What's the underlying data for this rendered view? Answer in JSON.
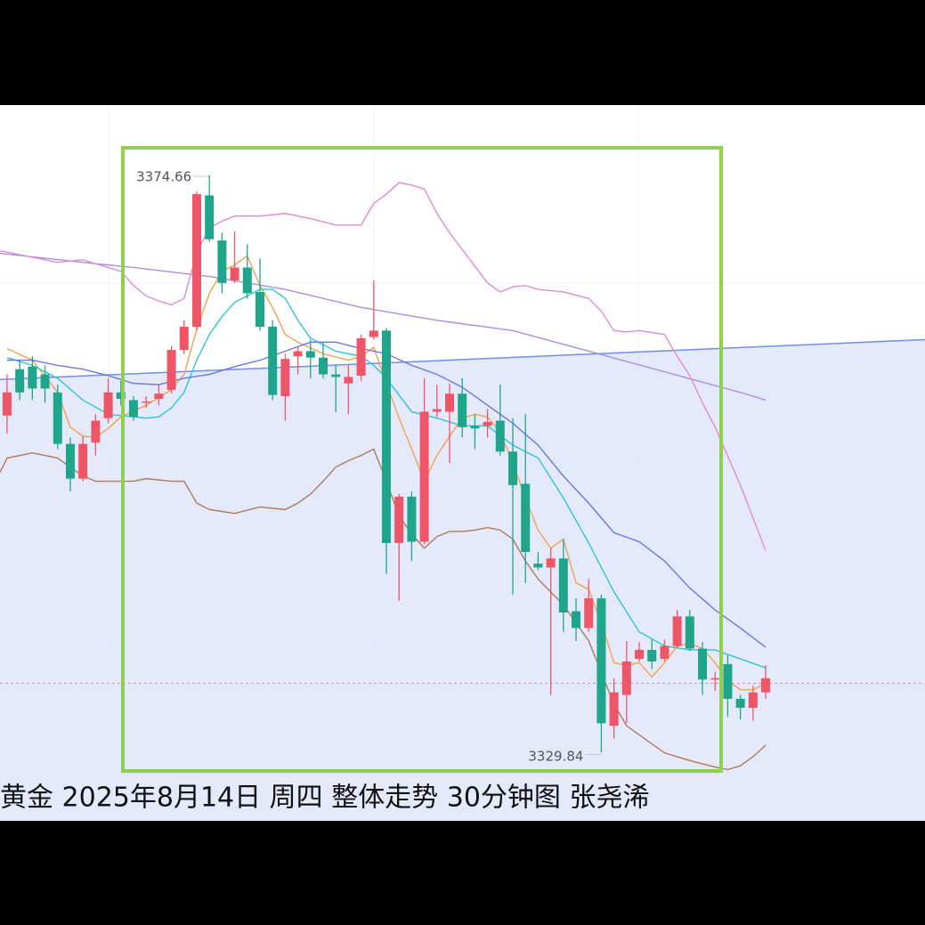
{
  "chart_data": {
    "type": "candlestick",
    "title": "黄金 2025年8月14日 周四 整体走势 30分钟图 张尧浠",
    "xlim": [
      -0.56,
      72.6
    ],
    "ylim": [
      3324.52,
      3380.12
    ],
    "up_color": "#ee5566",
    "down_color": "#1ea58c",
    "open": [
      3356.0,
      3359.6,
      3359.8,
      3359.2,
      3357.8,
      3353.8,
      3351.1,
      3353.9,
      3355.8,
      3357.8,
      3357.2,
      3357.0,
      3357.3,
      3358.0,
      3361.1,
      3362.9,
      3373.1,
      3369.6,
      3366.5,
      3367.5,
      3365.6,
      3362.9,
      3357.5,
      3360.6,
      3361.0,
      3360.5,
      3359.2,
      3358.5,
      3359.1,
      3362.1,
      3362.6,
      3346.1,
      3349.7,
      3346.2,
      3356.3,
      3356.3,
      3357.7,
      3355.2,
      3355.2,
      3355.6,
      3353.2,
      3350.7,
      3344.5,
      3344.2,
      3344.9,
      3340.8,
      3339.5,
      3341.8,
      3331.9,
      3334.3,
      3337.1,
      3337.8,
      3337.1,
      3338.1,
      3340.4,
      3337.9,
      3335.5,
      3336.7,
      3334.0,
      3333.3,
      3334.5
    ],
    "high": [
      3359.2,
      3360.3,
      3360.6,
      3359.9,
      3358.4,
      3354.3,
      3354.4,
      3356.1,
      3358.9,
      3358.7,
      3357.5,
      3357.5,
      3358.4,
      3361.4,
      3363.4,
      3373.4,
      3374.66,
      3370.2,
      3370.3,
      3369.3,
      3368.2,
      3363.4,
      3360.8,
      3361.3,
      3361.9,
      3361.7,
      3359.9,
      3359.9,
      3362.3,
      3366.5,
      3362.8,
      3349.9,
      3350.1,
      3358.9,
      3358.4,
      3358.5,
      3358.9,
      3356.1,
      3356.5,
      3358.4,
      3355.8,
      3356.1,
      3345.4,
      3345.7,
      3346.4,
      3341.8,
      3343.3,
      3342.1,
      3335.6,
      3338.5,
      3338.4,
      3338.6,
      3338.6,
      3340.9,
      3340.9,
      3338.4,
      3336.1,
      3337.4,
      3334.3,
      3335.0,
      3336.6
    ],
    "low": [
      3354.6,
      3357.2,
      3357.2,
      3357.0,
      3353.4,
      3350.1,
      3350.9,
      3352.9,
      3355.4,
      3356.8,
      3355.6,
      3356.6,
      3356.8,
      3357.7,
      3360.8,
      3362.6,
      3369.5,
      3365.5,
      3366.3,
      3365.1,
      3362.6,
      3357.2,
      3355.6,
      3359.2,
      3358.9,
      3358.9,
      3356.3,
      3356.1,
      3358.7,
      3361.9,
      3343.7,
      3341.6,
      3344.7,
      3346.0,
      3355.9,
      3352.3,
      3354.3,
      3353.4,
      3354.3,
      3352.9,
      3342.1,
      3343.0,
      3344.0,
      3334.3,
      3339.2,
      3338.5,
      3339.2,
      3329.84,
      3330.9,
      3332.1,
      3336.9,
      3336.3,
      3336.9,
      3337.9,
      3337.7,
      3334.3,
      3334.6,
      3332.6,
      3332.4,
      3332.3,
      3334.0
    ],
    "close": [
      3357.8,
      3357.8,
      3358.1,
      3358.1,
      3353.8,
      3351.1,
      3353.8,
      3355.6,
      3357.8,
      3357.3,
      3355.9,
      3357.1,
      3357.7,
      3361.1,
      3362.9,
      3373.2,
      3369.7,
      3366.3,
      3367.5,
      3365.5,
      3362.9,
      3357.6,
      3360.4,
      3361.0,
      3360.5,
      3359.2,
      3359.0,
      3359.0,
      3362.0,
      3362.6,
      3346.1,
      3349.7,
      3346.2,
      3356.3,
      3356.5,
      3357.7,
      3355.1,
      3355.0,
      3355.5,
      3353.2,
      3350.6,
      3345.4,
      3344.2,
      3344.9,
      3340.7,
      3339.5,
      3341.8,
      3332.1,
      3334.5,
      3336.9,
      3337.8,
      3336.9,
      3338.1,
      3340.4,
      3337.9,
      3335.5,
      3335.6,
      3334.0,
      3333.3,
      3334.5,
      3335.6
    ],
    "lines": [
      {
        "color": "#f5a04a",
        "x": [
          0,
          2,
          4,
          5,
          6,
          7,
          8,
          9,
          11,
          13,
          14,
          15,
          16,
          17,
          18,
          19,
          20,
          21,
          22,
          23,
          25,
          27,
          28,
          29,
          30,
          31,
          32,
          33,
          34,
          35,
          36,
          37,
          38,
          39,
          40,
          41,
          42,
          43,
          44,
          45,
          46,
          47,
          48,
          49,
          50,
          51,
          52,
          53,
          54,
          55,
          56,
          57,
          58,
          59,
          60
        ],
        "values": [
          3361.2,
          3360.3,
          3357.8,
          3355.1,
          3354.4,
          3354.3,
          3355.0,
          3355.9,
          3356.8,
          3358.0,
          3359.2,
          3362.7,
          3365.5,
          3367.2,
          3367.7,
          3368.4,
          3366.1,
          3364.4,
          3362.3,
          3361.7,
          3360.8,
          3360.3,
          3360.6,
          3361.3,
          3358.5,
          3355.8,
          3353.4,
          3350.9,
          3352.9,
          3354.4,
          3355.8,
          3356.1,
          3355.9,
          3354.7,
          3352.3,
          3349.6,
          3347.1,
          3345.7,
          3346.4,
          3343.0,
          3342.5,
          3339.9,
          3336.8,
          3336.6,
          3336.8,
          3335.7,
          3336.8,
          3338.1,
          3338.3,
          3337.9,
          3336.8,
          3335.4,
          3334.7,
          3334.7,
          3335.2
        ]
      },
      {
        "color": "#2ec4d6",
        "x": [
          0,
          2,
          4,
          6,
          8,
          10,
          11,
          12,
          13,
          14,
          15,
          16,
          17,
          18,
          19,
          20,
          21,
          22,
          23,
          24,
          26,
          28,
          29,
          30,
          32,
          34,
          36,
          38,
          40,
          42,
          44,
          46,
          48,
          50,
          52,
          54,
          56,
          58,
          60
        ],
        "values": [
          3360.5,
          3359.9,
          3358.9,
          3357.2,
          3356.1,
          3355.9,
          3355.8,
          3355.9,
          3356.6,
          3357.8,
          3360.3,
          3362.3,
          3363.7,
          3364.8,
          3365.3,
          3365.8,
          3365.8,
          3365.1,
          3363.4,
          3362.0,
          3361.0,
          3360.6,
          3359.9,
          3358.9,
          3356.3,
          3355.8,
          3355.2,
          3355.2,
          3353.7,
          3352.7,
          3349.6,
          3346.1,
          3342.3,
          3339.2,
          3338.1,
          3337.8,
          3337.8,
          3337.1,
          3336.4
        ]
      },
      {
        "color": "#6b78e0",
        "x": [
          0,
          2,
          4,
          6,
          8,
          10,
          12,
          14,
          16,
          18,
          20,
          22,
          24,
          26,
          28,
          30,
          32,
          34,
          36,
          38,
          40,
          42,
          44,
          46,
          48,
          50,
          52,
          54,
          56,
          58,
          60
        ],
        "values": [
          3360.3,
          3360.3,
          3359.9,
          3359.6,
          3359.1,
          3358.5,
          3358.4,
          3358.9,
          3359.2,
          3359.8,
          3360.3,
          3361.0,
          3361.7,
          3361.7,
          3361.2,
          3360.8,
          3359.9,
          3359.2,
          3358.2,
          3356.8,
          3355.4,
          3353.7,
          3351.3,
          3349.2,
          3346.9,
          3346.2,
          3344.7,
          3342.6,
          3340.9,
          3339.5,
          3338.0
        ]
      },
      {
        "color": "#a88ee0",
        "x": [
          -0.56,
          6,
          10,
          16,
          22,
          28,
          34,
          40,
          46,
          52,
          58,
          60
        ],
        "values": [
          3368.6,
          3367.9,
          3367.5,
          3366.8,
          3365.8,
          3364.4,
          3363.4,
          3362.6,
          3361.0,
          3359.4,
          3357.8,
          3357.2
        ]
      },
      {
        "color": "#e08bd6",
        "x": [
          -0.56,
          4,
          6,
          8,
          9,
          10,
          11,
          12,
          13,
          14,
          15,
          16,
          17,
          18,
          20,
          22,
          24,
          26,
          28,
          29,
          30,
          31,
          32,
          33,
          34,
          35,
          36,
          38,
          39,
          40,
          41,
          42,
          44,
          46,
          47,
          48,
          49,
          50,
          52,
          53,
          54,
          55,
          56,
          58,
          60
        ],
        "values": [
          3368.8,
          3367.9,
          3368.1,
          3367.5,
          3367.2,
          3366.1,
          3365.3,
          3364.9,
          3364.6,
          3365.1,
          3368.6,
          3370.6,
          3371.1,
          3371.5,
          3371.5,
          3371.7,
          3371.3,
          3370.8,
          3370.8,
          3372.5,
          3373.2,
          3374.1,
          3373.9,
          3373.6,
          3371.7,
          3370.2,
          3368.9,
          3366.3,
          3365.6,
          3366.0,
          3366.1,
          3365.8,
          3365.6,
          3365.1,
          3364.1,
          3362.6,
          3362.5,
          3362.6,
          3362.3,
          3360.6,
          3359.1,
          3357.0,
          3355.1,
          3350.6,
          3345.5
        ]
      },
      {
        "color": "#b07a55",
        "x": [
          -0.56,
          0,
          2,
          4,
          6,
          7,
          10,
          11,
          13,
          14,
          15,
          16,
          18,
          20,
          22,
          23,
          24,
          25,
          26,
          27,
          28,
          29,
          30,
          31,
          32,
          33,
          34,
          35,
          36,
          37,
          38,
          39,
          40,
          41,
          42,
          44,
          46,
          48,
          49,
          50,
          52,
          54,
          56,
          57,
          58,
          59,
          60
        ],
        "values": [
          3351.6,
          3352.7,
          3353.1,
          3352.7,
          3351.3,
          3350.9,
          3350.9,
          3351.1,
          3350.9,
          3350.9,
          3349.2,
          3348.7,
          3348.4,
          3348.9,
          3348.7,
          3349.2,
          3349.9,
          3350.9,
          3352.0,
          3352.5,
          3352.9,
          3353.4,
          3350.9,
          3348.2,
          3346.8,
          3345.7,
          3346.6,
          3347.0,
          3347.0,
          3347.1,
          3347.3,
          3347.1,
          3346.4,
          3344.7,
          3343.3,
          3341.3,
          3338.5,
          3333.6,
          3331.9,
          3331.2,
          3329.8,
          3329.2,
          3328.7,
          3328.5,
          3328.8,
          3329.5,
          3330.4
        ]
      }
    ],
    "trend": {
      "color": "#6f8fe8",
      "fill": "#dfe6fb",
      "x": [
        -0.56,
        72.6
      ],
      "values": [
        3358.8,
        3361.9
      ]
    },
    "price_line": 3335.2,
    "price_line_color": "#e58a8a",
    "high_label": 3374.66,
    "low_label": 3329.84
  }
}
